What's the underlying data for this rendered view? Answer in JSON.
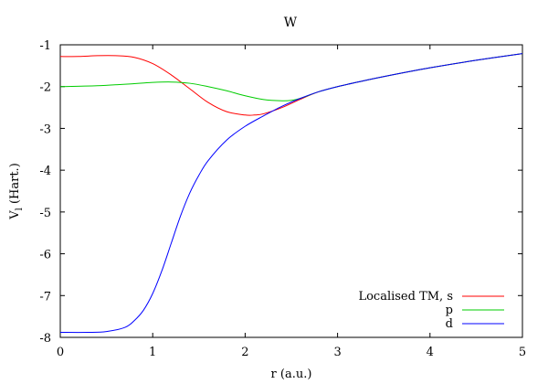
{
  "chart_data": {
    "type": "line",
    "title": "W",
    "xlabel": "r (a.u.)",
    "ylabel_main": "V",
    "ylabel_sub": "l",
    "ylabel_rest": " (Hart.)",
    "xlim": [
      0,
      5
    ],
    "ylim": [
      -8,
      -1
    ],
    "xticks": [
      "0",
      "1",
      "2",
      "3",
      "4",
      "5"
    ],
    "yticks": [
      "-1",
      "-2",
      "-3",
      "-4",
      "-5",
      "-6",
      "-7",
      "-8"
    ],
    "grid": false,
    "legend_position": "bottom-right",
    "series": [
      {
        "name": "Localised TM, s",
        "color": "#ff0000",
        "x": [
          0,
          0.2,
          0.4,
          0.6,
          0.8,
          1.0,
          1.2,
          1.4,
          1.6,
          1.8,
          2.0,
          2.1,
          2.2,
          2.4,
          2.6,
          2.8,
          3.0,
          3.2,
          3.5,
          4.0,
          4.5,
          5.0
        ],
        "y": [
          -1.28,
          -1.28,
          -1.26,
          -1.26,
          -1.3,
          -1.45,
          -1.72,
          -2.05,
          -2.38,
          -2.6,
          -2.68,
          -2.68,
          -2.65,
          -2.5,
          -2.3,
          -2.12,
          -2.0,
          -1.9,
          -1.76,
          -1.55,
          -1.37,
          -1.21
        ]
      },
      {
        "name": "p",
        "color": "#00cc00",
        "x": [
          0,
          0.4,
          0.8,
          1.0,
          1.2,
          1.4,
          1.6,
          1.8,
          2.0,
          2.2,
          2.4,
          2.5,
          2.6,
          2.8,
          3.0,
          3.2,
          3.5,
          4.0,
          4.5,
          5.0
        ],
        "y": [
          -2.0,
          -1.98,
          -1.93,
          -1.9,
          -1.89,
          -1.92,
          -2.0,
          -2.1,
          -2.22,
          -2.31,
          -2.34,
          -2.33,
          -2.28,
          -2.12,
          -2.0,
          -1.9,
          -1.76,
          -1.55,
          -1.37,
          -1.21
        ]
      },
      {
        "name": "d",
        "color": "#0000ff",
        "x": [
          0,
          0.3,
          0.5,
          0.7,
          0.8,
          0.9,
          1.0,
          1.1,
          1.2,
          1.3,
          1.4,
          1.5,
          1.6,
          1.8,
          2.0,
          2.2,
          2.4,
          2.6,
          2.8,
          3.0,
          3.2,
          3.5,
          4.0,
          4.5,
          5.0
        ],
        "y": [
          -7.88,
          -7.88,
          -7.86,
          -7.76,
          -7.6,
          -7.35,
          -6.95,
          -6.4,
          -5.75,
          -5.1,
          -4.55,
          -4.12,
          -3.77,
          -3.28,
          -2.95,
          -2.7,
          -2.47,
          -2.28,
          -2.12,
          -2.0,
          -1.9,
          -1.76,
          -1.55,
          -1.37,
          -1.21
        ]
      }
    ]
  }
}
